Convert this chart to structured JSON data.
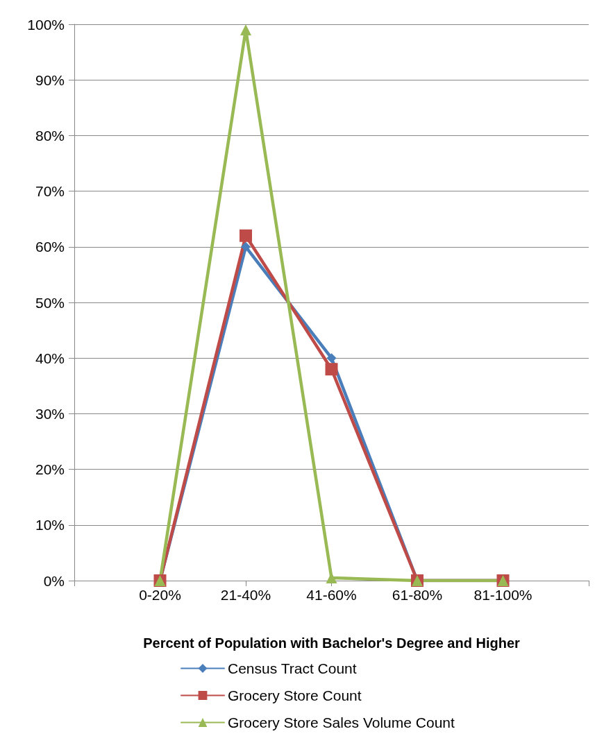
{
  "chart_data": {
    "type": "line",
    "xlabel": "Percent of Population with Bachelor's Degree and Higher",
    "categories": [
      null,
      "0-20%",
      "21-40%",
      "41-60%",
      "61-80%",
      "81-100%",
      null
    ],
    "series": [
      {
        "name": "Census Tract Count",
        "color": "#4a7ebb",
        "marker": "diamond",
        "values": [
          null,
          0,
          60,
          40,
          0,
          0,
          null
        ]
      },
      {
        "name": "Grocery Store Count",
        "color": "#be4b48",
        "marker": "square",
        "values": [
          null,
          0,
          62,
          38,
          0,
          0,
          null
        ]
      },
      {
        "name": "Grocery Store Sales Volume Count",
        "color": "#98b954",
        "marker": "triangle",
        "values": [
          null,
          0,
          99,
          0.5,
          0,
          0,
          null
        ]
      }
    ],
    "ylim": [
      0,
      100
    ],
    "yticks": [
      {
        "value": 0,
        "label": "0%"
      },
      {
        "value": 10,
        "label": "10%"
      },
      {
        "value": 20,
        "label": "20%"
      },
      {
        "value": 30,
        "label": "30%"
      },
      {
        "value": 40,
        "label": "40%"
      },
      {
        "value": 50,
        "label": "50%"
      },
      {
        "value": 60,
        "label": "60%"
      },
      {
        "value": 70,
        "label": "70%"
      },
      {
        "value": 80,
        "label": "80%"
      },
      {
        "value": 90,
        "label": "90%"
      },
      {
        "value": 100,
        "label": "100%"
      }
    ],
    "grid": "y",
    "legend": "bottom",
    "line_style": "solid"
  }
}
